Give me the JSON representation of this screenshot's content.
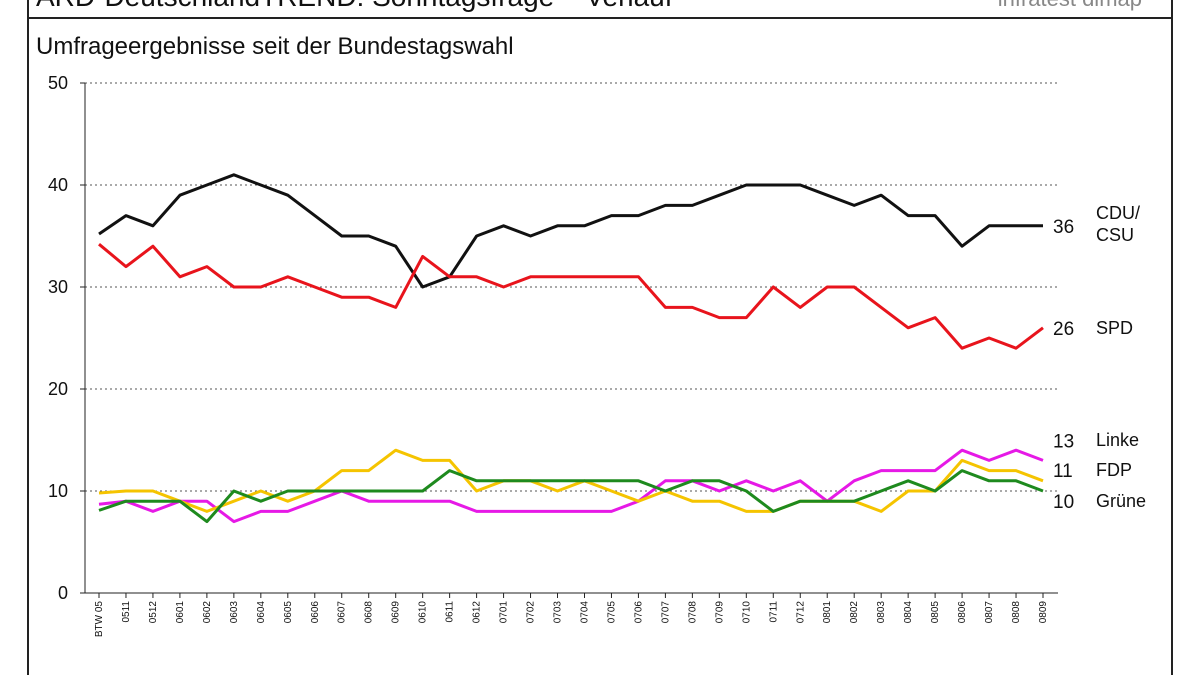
{
  "chart_data": {
    "type": "line",
    "title": "ARD-DeutschlandTREND: Sonntagsfrage – Verlauf",
    "source": "infratest dimap",
    "subtitle": "Umfrageergebnisse seit der Bundestagswahl",
    "categories": [
      "BTW 05",
      "0511",
      "0512",
      "0601",
      "0602",
      "0603",
      "0604",
      "0605",
      "0606",
      "0607",
      "0608",
      "0609",
      "0610",
      "0611",
      "0612",
      "0701",
      "0702",
      "0703",
      "0704",
      "0705",
      "0706",
      "0707",
      "0708",
      "0709",
      "0710",
      "0711",
      "0712",
      "0801",
      "0802",
      "0803",
      "0804",
      "0805",
      "0806",
      "0807",
      "0808",
      "0809"
    ],
    "ylim": [
      0,
      50
    ],
    "yticks": [
      0,
      10,
      20,
      30,
      40,
      50
    ],
    "grid": true,
    "series": [
      {
        "name": "CDU/\nCSU",
        "color": "#111111",
        "values": [
          35.2,
          37,
          36,
          39,
          40,
          41,
          40,
          39,
          37,
          35,
          35,
          34,
          30,
          31,
          35,
          36,
          35,
          36,
          36,
          37,
          37,
          38,
          38,
          39,
          40,
          40,
          40,
          39,
          38,
          39,
          37,
          37,
          34,
          36,
          36,
          36
        ]
      },
      {
        "name": "SPD",
        "color": "#e8141c",
        "values": [
          34.2,
          32,
          34,
          31,
          32,
          30,
          30,
          31,
          30,
          29,
          29,
          28,
          33,
          31,
          31,
          30,
          31,
          31,
          31,
          31,
          31,
          28,
          28,
          27,
          27,
          30,
          28,
          30,
          30,
          28,
          26,
          27,
          24,
          25,
          24,
          26
        ]
      },
      {
        "name": "Linke",
        "color": "#e619e6",
        "values": [
          8.7,
          9,
          8,
          9,
          9,
          7,
          8,
          8,
          9,
          10,
          9,
          9,
          9,
          9,
          8,
          8,
          8,
          8,
          8,
          8,
          9,
          11,
          11,
          10,
          11,
          10,
          11,
          9,
          11,
          12,
          12,
          12,
          14,
          13,
          14,
          13
        ]
      },
      {
        "name": "FDP",
        "color": "#f5c400",
        "values": [
          9.8,
          10,
          10,
          9,
          8,
          9,
          10,
          9,
          10,
          12,
          12,
          14,
          13,
          13,
          10,
          11,
          11,
          10,
          11,
          10,
          9,
          10,
          9,
          9,
          8,
          8,
          9,
          9,
          9,
          8,
          10,
          10,
          13,
          12,
          12,
          11
        ]
      },
      {
        "name": "Grüne",
        "color": "#1e8a1e",
        "values": [
          8.1,
          9,
          9,
          9,
          7,
          10,
          9,
          10,
          10,
          10,
          10,
          10,
          10,
          12,
          11,
          11,
          11,
          11,
          11,
          11,
          11,
          10,
          11,
          11,
          10,
          8,
          9,
          9,
          9,
          10,
          11,
          10,
          12,
          11,
          11,
          10
        ]
      }
    ]
  }
}
